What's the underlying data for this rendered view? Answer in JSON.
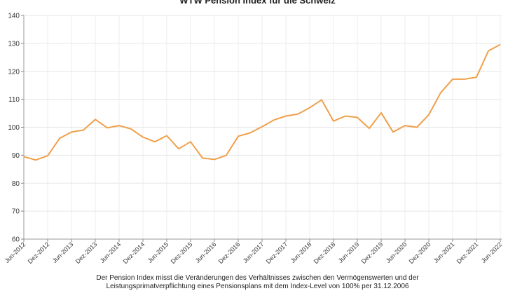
{
  "chart_data": {
    "type": "line",
    "title": "WTW Pension Index für die Schweiz",
    "ylim": [
      60,
      140
    ],
    "yticks": [
      60,
      70,
      80,
      90,
      100,
      110,
      120,
      130,
      140
    ],
    "grid": true,
    "x_tick_labels": [
      "Jun-2012",
      "Dez-2012",
      "Jun-2013",
      "Dez-2013",
      "Jun-2014",
      "Dez-2014",
      "Jun-2015",
      "Dez-2015",
      "Jun-2016",
      "Dez-2016",
      "Jun-2017",
      "Dez-2017",
      "Jun-2018",
      "Dez-2018",
      "Jun-2019",
      "Dez-2019",
      "Jun-2020",
      "Dez-2020",
      "Jun-2021",
      "Dez-2021",
      "Jun-2022"
    ],
    "series": [
      {
        "color": "#f0a04b",
        "x": [
          "Jun-2012",
          "Sep-2012",
          "Dez-2012",
          "Mär-2013",
          "Jun-2013",
          "Sep-2013",
          "Dez-2013",
          "Mär-2014",
          "Jun-2014",
          "Sep-2014",
          "Dez-2014",
          "Mär-2015",
          "Jun-2015",
          "Sep-2015",
          "Dez-2015",
          "Mär-2016",
          "Jun-2016",
          "Sep-2016",
          "Dez-2016",
          "Mär-2017",
          "Jun-2017",
          "Sep-2017",
          "Dez-2017",
          "Mär-2018",
          "Jun-2018",
          "Sep-2018",
          "Dez-2018",
          "Mär-2019",
          "Jun-2019",
          "Sep-2019",
          "Dez-2019",
          "Mär-2020",
          "Jun-2020",
          "Sep-2020",
          "Dez-2020",
          "Mär-2021",
          "Jun-2021",
          "Sep-2021",
          "Dez-2021",
          "Mär-2022",
          "Jun-2022"
        ],
        "values": [
          89.5,
          88.3,
          89.8,
          96.0,
          98.3,
          99.0,
          102.8,
          99.8,
          100.6,
          99.4,
          96.5,
          94.8,
          97.0,
          92.3,
          94.8,
          89.0,
          88.5,
          90.0,
          96.8,
          98.0,
          100.2,
          102.6,
          104.0,
          104.7,
          107.0,
          109.8,
          102.2,
          104.0,
          103.5,
          99.6,
          105.2,
          98.3,
          100.6,
          100.0,
          104.5,
          112.4,
          117.2,
          117.2,
          117.9,
          127.3,
          129.6
        ]
      }
    ]
  },
  "caption": {
    "line1": "Der Pension Index misst die Veränderungen  des Verhältnisses zwischen den Vermögenswerten und der",
    "line2": "Leistungsprimatverpflichtung eines Pensionsplans mit dem Index-Level von 100% per 31.12.2006"
  }
}
